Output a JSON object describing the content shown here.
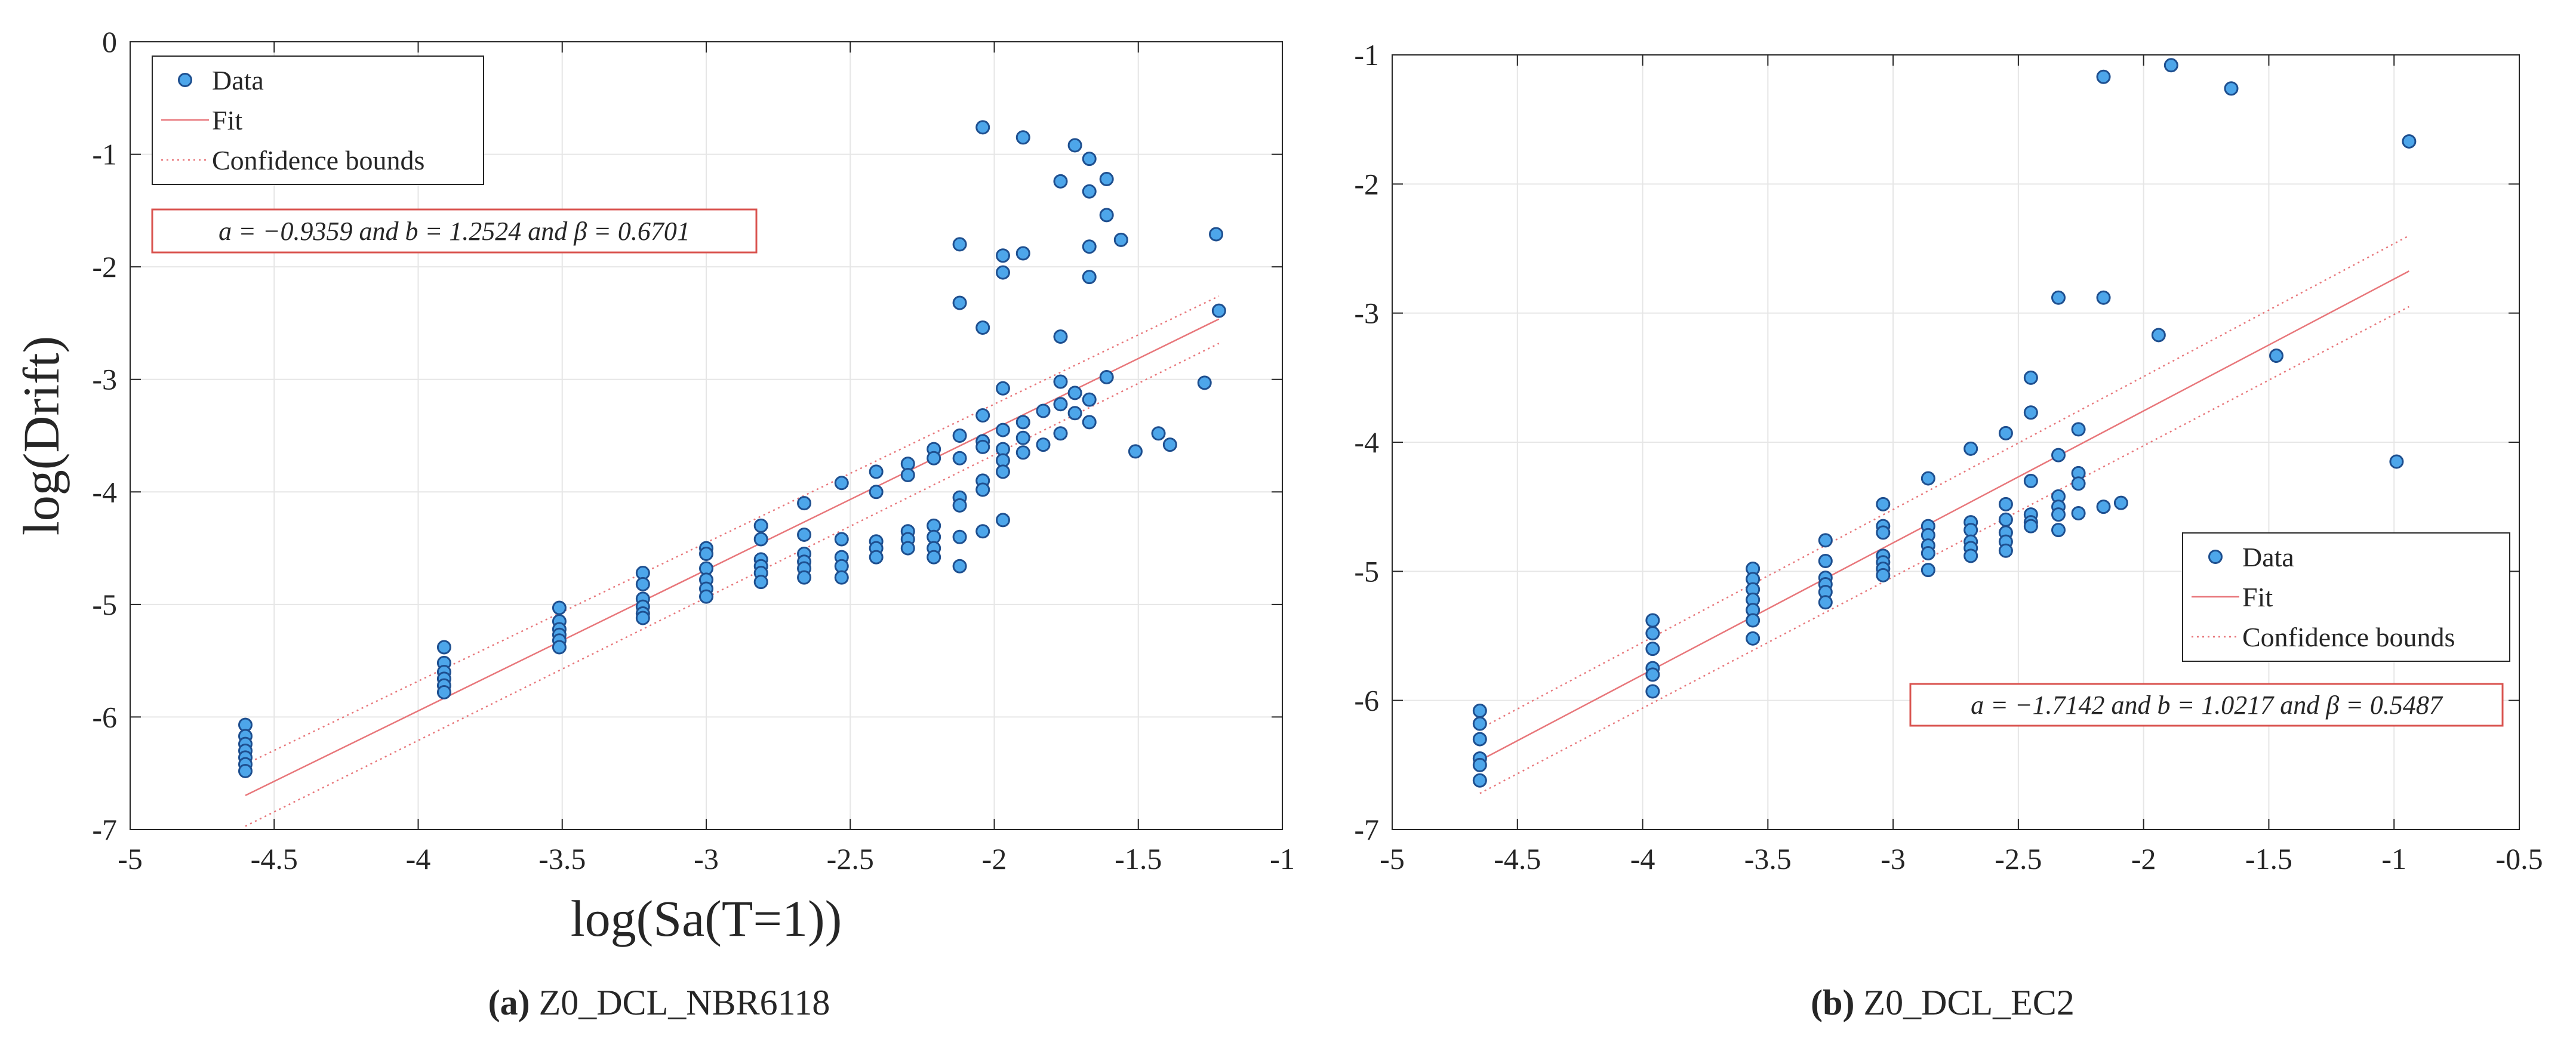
{
  "figure": {
    "panels": [
      {
        "caption_label": "(a)",
        "caption_text": " Z0_DCL_NBR6118",
        "annotation": "a = −0.9359 and b = 1.2524 and β = 0.6701",
        "legend_items": [
          "Data",
          "Fit",
          "Confidence bounds"
        ],
        "legend_position": "top-left",
        "annotation_position": "top-left"
      },
      {
        "caption_label": "(b)",
        "caption_text": " Z0_DCL_EC2",
        "annotation": "a = −1.7142 and b = 1.0217 and β = 0.5487",
        "legend_items": [
          "Data",
          "Fit",
          "Confidence bounds"
        ],
        "legend_position": "center-right",
        "annotation_position": "center-right"
      }
    ]
  },
  "colors": {
    "marker_fill": "#4da6ea",
    "marker_edge": "#1e4f8f",
    "fit_line": "#e8767a",
    "grid": "#e6e6e6",
    "annotation_border": "#d9534f"
  },
  "chart_data": [
    {
      "type": "scatter",
      "title": "",
      "xlabel": "log(Sa(T=1))",
      "ylabel": "log(Drift)",
      "xlim": [
        -5,
        -1
      ],
      "ylim": [
        -7,
        0
      ],
      "xticks": [
        -5,
        -4.5,
        -4,
        -3.5,
        -3,
        -2.5,
        -2,
        -1.5,
        -1
      ],
      "yticks": [
        0,
        -1,
        -2,
        -3,
        -4,
        -5,
        -6,
        -7
      ],
      "xtick_labels": [
        "-5",
        "-4.5",
        "-4",
        "-3.5",
        "-3",
        "-2.5",
        "-2",
        "-1.5",
        "-1"
      ],
      "ytick_labels": [
        "0",
        "-1",
        "-2",
        "-3",
        "-4",
        "-5",
        "-6",
        "-7"
      ],
      "grid": true,
      "fit": {
        "a": -0.9359,
        "b": 1.2524,
        "beta": 0.6701,
        "x_range": [
          -4.6,
          -1.22
        ]
      },
      "confidence_bounds": {
        "lower": [
          [
            -4.6,
            -6.97
          ],
          [
            -1.22,
            -2.68
          ]
        ],
        "upper": [
          [
            -4.6,
            -6.42
          ],
          [
            -1.22,
            -2.26
          ]
        ]
      },
      "series": [
        {
          "name": "Data",
          "points": [
            [
              -4.6,
              -6.07
            ],
            [
              -4.6,
              -6.17
            ],
            [
              -4.6,
              -6.24
            ],
            [
              -4.6,
              -6.3
            ],
            [
              -4.6,
              -6.36
            ],
            [
              -4.6,
              -6.42
            ],
            [
              -4.6,
              -6.48
            ],
            [
              -3.91,
              -5.38
            ],
            [
              -3.91,
              -5.52
            ],
            [
              -3.91,
              -5.6
            ],
            [
              -3.91,
              -5.66
            ],
            [
              -3.91,
              -5.72
            ],
            [
              -3.91,
              -5.78
            ],
            [
              -3.51,
              -5.03
            ],
            [
              -3.51,
              -5.15
            ],
            [
              -3.51,
              -5.22
            ],
            [
              -3.51,
              -5.27
            ],
            [
              -3.51,
              -5.32
            ],
            [
              -3.51,
              -5.38
            ],
            [
              -3.22,
              -4.72
            ],
            [
              -3.22,
              -4.82
            ],
            [
              -3.22,
              -4.95
            ],
            [
              -3.22,
              -5.02
            ],
            [
              -3.22,
              -5.08
            ],
            [
              -3.22,
              -5.12
            ],
            [
              -3.0,
              -4.5
            ],
            [
              -3.0,
              -4.55
            ],
            [
              -3.0,
              -4.68
            ],
            [
              -3.0,
              -4.78
            ],
            [
              -3.0,
              -4.86
            ],
            [
              -3.0,
              -4.93
            ],
            [
              -2.81,
              -4.3
            ],
            [
              -2.81,
              -4.42
            ],
            [
              -2.81,
              -4.6
            ],
            [
              -2.81,
              -4.66
            ],
            [
              -2.81,
              -4.72
            ],
            [
              -2.81,
              -4.8
            ],
            [
              -2.66,
              -4.1
            ],
            [
              -2.66,
              -4.38
            ],
            [
              -2.66,
              -4.55
            ],
            [
              -2.66,
              -4.62
            ],
            [
              -2.66,
              -4.68
            ],
            [
              -2.66,
              -4.76
            ],
            [
              -2.53,
              -3.92
            ],
            [
              -2.53,
              -4.42
            ],
            [
              -2.53,
              -4.58
            ],
            [
              -2.53,
              -4.66
            ],
            [
              -2.53,
              -4.76
            ],
            [
              -2.41,
              -3.82
            ],
            [
              -2.41,
              -4.0
            ],
            [
              -2.41,
              -4.44
            ],
            [
              -2.41,
              -4.5
            ],
            [
              -2.41,
              -4.58
            ],
            [
              -2.3,
              -3.75
            ],
            [
              -2.3,
              -3.85
            ],
            [
              -2.3,
              -4.35
            ],
            [
              -2.3,
              -4.42
            ],
            [
              -2.3,
              -4.5
            ],
            [
              -2.21,
              -3.62
            ],
            [
              -2.21,
              -3.7
            ],
            [
              -2.21,
              -4.3
            ],
            [
              -2.21,
              -4.4
            ],
            [
              -2.21,
              -4.5
            ],
            [
              -2.21,
              -4.58
            ],
            [
              -2.12,
              -1.8
            ],
            [
              -2.12,
              -2.32
            ],
            [
              -2.12,
              -3.5
            ],
            [
              -2.12,
              -3.7
            ],
            [
              -2.12,
              -4.05
            ],
            [
              -2.12,
              -4.12
            ],
            [
              -2.12,
              -4.4
            ],
            [
              -2.12,
              -4.66
            ],
            [
              -2.04,
              -0.76
            ],
            [
              -2.04,
              -2.54
            ],
            [
              -2.04,
              -3.32
            ],
            [
              -2.04,
              -3.55
            ],
            [
              -2.04,
              -3.6
            ],
            [
              -2.04,
              -3.9
            ],
            [
              -2.04,
              -3.98
            ],
            [
              -2.04,
              -4.35
            ],
            [
              -1.97,
              -1.9
            ],
            [
              -1.97,
              -2.05
            ],
            [
              -1.97,
              -3.08
            ],
            [
              -1.97,
              -3.45
            ],
            [
              -1.97,
              -3.62
            ],
            [
              -1.97,
              -3.72
            ],
            [
              -1.97,
              -3.82
            ],
            [
              -1.97,
              -4.25
            ],
            [
              -1.9,
              -0.85
            ],
            [
              -1.9,
              -1.88
            ],
            [
              -1.9,
              -3.38
            ],
            [
              -1.9,
              -3.52
            ],
            [
              -1.9,
              -3.65
            ],
            [
              -1.83,
              -3.28
            ],
            [
              -1.83,
              -3.58
            ],
            [
              -1.77,
              -1.24
            ],
            [
              -1.77,
              -2.62
            ],
            [
              -1.77,
              -3.02
            ],
            [
              -1.77,
              -3.22
            ],
            [
              -1.77,
              -3.48
            ],
            [
              -1.72,
              -0.92
            ],
            [
              -1.72,
              -3.12
            ],
            [
              -1.72,
              -3.3
            ],
            [
              -1.67,
              -1.04
            ],
            [
              -1.67,
              -1.33
            ],
            [
              -1.67,
              -1.82
            ],
            [
              -1.67,
              -2.09
            ],
            [
              -1.67,
              -3.18
            ],
            [
              -1.67,
              -3.38
            ],
            [
              -1.61,
              -1.22
            ],
            [
              -1.61,
              -1.54
            ],
            [
              -1.61,
              -2.98
            ],
            [
              -1.56,
              -1.76
            ],
            [
              -1.51,
              -3.64
            ],
            [
              -1.43,
              -3.48
            ],
            [
              -1.39,
              -3.58
            ],
            [
              -1.27,
              -3.03
            ],
            [
              -1.23,
              -1.71
            ],
            [
              -1.22,
              -2.39
            ]
          ]
        }
      ]
    },
    {
      "type": "scatter",
      "title": "",
      "xlabel": "",
      "ylabel": "",
      "xlim": [
        -5,
        -0.5
      ],
      "ylim": [
        -7,
        -1
      ],
      "xticks": [
        -5,
        -4.5,
        -4,
        -3.5,
        -3,
        -2.5,
        -2,
        -1.5,
        -1,
        -0.5
      ],
      "yticks": [
        -1,
        -2,
        -3,
        -4,
        -5,
        -6,
        -7
      ],
      "xtick_labels": [
        "-5",
        "-4.5",
        "-4",
        "-3.5",
        "-3",
        "-2.5",
        "-2",
        "-1.5",
        "-1",
        "-0.5"
      ],
      "ytick_labels": [
        "-1",
        "-2",
        "-3",
        "-4",
        "-5",
        "-6",
        "-7"
      ],
      "grid": true,
      "fit": {
        "a": -1.7142,
        "b": 1.0217,
        "beta": 0.5487,
        "x_range": [
          -4.65,
          -0.94
        ]
      },
      "confidence_bounds": {
        "lower": [
          [
            -4.65,
            -6.72
          ],
          [
            -0.94,
            -2.95
          ]
        ],
        "upper": [
          [
            -4.65,
            -6.22
          ],
          [
            -0.94,
            -2.4
          ]
        ]
      },
      "series": [
        {
          "name": "Data",
          "points": [
            [
              -4.65,
              -6.08
            ],
            [
              -4.65,
              -6.18
            ],
            [
              -4.65,
              -6.3
            ],
            [
              -4.65,
              -6.45
            ],
            [
              -4.65,
              -6.5
            ],
            [
              -4.65,
              -6.62
            ],
            [
              -3.96,
              -5.38
            ],
            [
              -3.96,
              -5.48
            ],
            [
              -3.96,
              -5.6
            ],
            [
              -3.96,
              -5.75
            ],
            [
              -3.96,
              -5.8
            ],
            [
              -3.96,
              -5.93
            ],
            [
              -3.56,
              -4.98
            ],
            [
              -3.56,
              -5.06
            ],
            [
              -3.56,
              -5.14
            ],
            [
              -3.56,
              -5.22
            ],
            [
              -3.56,
              -5.3
            ],
            [
              -3.56,
              -5.38
            ],
            [
              -3.56,
              -5.52
            ],
            [
              -3.27,
              -4.76
            ],
            [
              -3.27,
              -4.92
            ],
            [
              -3.27,
              -5.05
            ],
            [
              -3.27,
              -5.1
            ],
            [
              -3.27,
              -5.16
            ],
            [
              -3.27,
              -5.24
            ],
            [
              -3.04,
              -4.48
            ],
            [
              -3.04,
              -4.65
            ],
            [
              -3.04,
              -4.7
            ],
            [
              -3.04,
              -4.88
            ],
            [
              -3.04,
              -4.93
            ],
            [
              -3.04,
              -4.98
            ],
            [
              -3.04,
              -5.03
            ],
            [
              -2.86,
              -4.28
            ],
            [
              -2.86,
              -4.65
            ],
            [
              -2.86,
              -4.72
            ],
            [
              -2.86,
              -4.8
            ],
            [
              -2.86,
              -4.86
            ],
            [
              -2.86,
              -4.99
            ],
            [
              -2.69,
              -4.05
            ],
            [
              -2.69,
              -4.62
            ],
            [
              -2.69,
              -4.68
            ],
            [
              -2.69,
              -4.77
            ],
            [
              -2.69,
              -4.82
            ],
            [
              -2.69,
              -4.88
            ],
            [
              -2.55,
              -3.93
            ],
            [
              -2.55,
              -4.48
            ],
            [
              -2.55,
              -4.6
            ],
            [
              -2.55,
              -4.7
            ],
            [
              -2.55,
              -4.77
            ],
            [
              -2.55,
              -4.84
            ],
            [
              -2.45,
              -3.5
            ],
            [
              -2.45,
              -3.77
            ],
            [
              -2.45,
              -4.3
            ],
            [
              -2.45,
              -4.56
            ],
            [
              -2.45,
              -4.62
            ],
            [
              -2.45,
              -4.65
            ],
            [
              -2.34,
              -2.88
            ],
            [
              -2.34,
              -4.1
            ],
            [
              -2.34,
              -4.42
            ],
            [
              -2.34,
              -4.5
            ],
            [
              -2.34,
              -4.56
            ],
            [
              -2.34,
              -4.68
            ],
            [
              -2.26,
              -3.9
            ],
            [
              -2.26,
              -4.24
            ],
            [
              -2.26,
              -4.32
            ],
            [
              -2.26,
              -4.55
            ],
            [
              -2.16,
              -1.17
            ],
            [
              -2.16,
              -2.88
            ],
            [
              -2.16,
              -4.5
            ],
            [
              -2.09,
              -4.47
            ],
            [
              -1.94,
              -3.17
            ],
            [
              -1.89,
              -1.08
            ],
            [
              -1.65,
              -1.26
            ],
            [
              -1.47,
              -3.33
            ],
            [
              -0.99,
              -4.15
            ],
            [
              -0.94,
              -1.67
            ]
          ]
        }
      ]
    }
  ]
}
